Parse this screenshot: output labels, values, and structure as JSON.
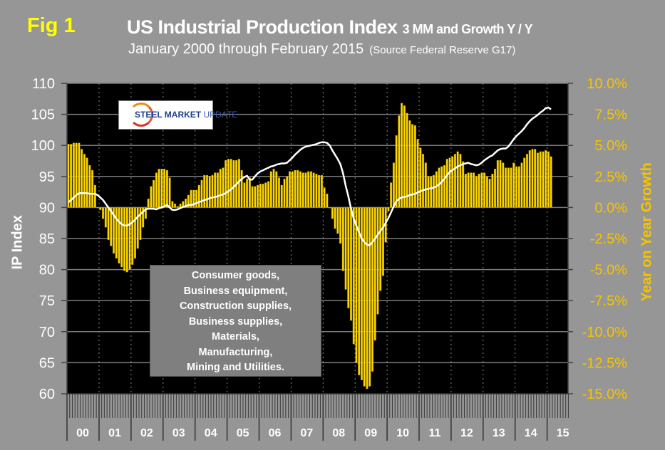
{
  "header": {
    "fig_label": "Fig 1",
    "title_main": "US Industrial Production Index",
    "title_small": "3 MM and Growth Y / Y",
    "subtitle": "January 2000 through February 2015",
    "source": "(Source Federal Reserve G17)"
  },
  "logo": {
    "text_bold": "STEEL MARKET",
    "text_light": "UPDATE"
  },
  "textbox": {
    "lines": [
      "Consumer goods,",
      "Business equipment,",
      "Construction supplies,",
      "Business supplies,",
      "Materials,",
      "Manufacturing,",
      "Mining and Utilities."
    ]
  },
  "colors": {
    "background": "#969696",
    "plot": "#000000",
    "bars": "#FFD700",
    "line": "#FFFFFF",
    "fig_label": "#FFFF00",
    "right_axis": "#F5C400"
  },
  "chart_data": {
    "type": "bar+line",
    "title": "US Industrial Production Index 3 MM and Growth Y / Y",
    "subtitle": "January 2000 through February 2015 (Source Federal Reserve G17)",
    "xlabel": "",
    "ylabel": "IP Index",
    "y2label": "Year on Year Growth",
    "ylim": [
      60,
      110
    ],
    "y2lim": [
      -15,
      10
    ],
    "yticks": [
      "60",
      "65",
      "70",
      "75",
      "80",
      "85",
      "90",
      "95",
      "100",
      "105",
      "110"
    ],
    "y2ticks": [
      "-15.0%",
      "-12.5%",
      "-10.0%",
      "-7.5%",
      "-5.0%",
      "-2.5%",
      "0.0%",
      "2.5%",
      "5.0%",
      "7.5%",
      "10.0%"
    ],
    "xticks": [
      "00",
      "01",
      "02",
      "03",
      "04",
      "05",
      "06",
      "07",
      "08",
      "09",
      "10",
      "11",
      "12",
      "13",
      "14",
      "15"
    ],
    "start": "2000-01",
    "grid": true,
    "series": [
      {
        "name": "Growth Y/Y (%)",
        "type": "bar",
        "axis": "right",
        "values": [
          5.1,
          5.1,
          5.2,
          5.2,
          5.2,
          4.7,
          4.3,
          4.0,
          3.4,
          3.0,
          1.8,
          0.0,
          -0.2,
          -0.9,
          -1.6,
          -2.6,
          -3.1,
          -3.7,
          -4.1,
          -4.5,
          -4.8,
          -5.1,
          -5.2,
          -5.0,
          -4.6,
          -4.1,
          -3.3,
          -2.6,
          -1.6,
          -0.9,
          0.7,
          1.7,
          2.2,
          2.8,
          3.1,
          3.1,
          3.1,
          3.0,
          2.4,
          0.5,
          0.3,
          0.1,
          0.3,
          0.5,
          0.7,
          1.0,
          1.4,
          1.4,
          1.4,
          1.8,
          2.2,
          2.6,
          2.6,
          2.5,
          2.6,
          2.8,
          2.8,
          3.1,
          3.2,
          3.8,
          3.9,
          3.9,
          3.8,
          3.8,
          3.9,
          3.0,
          2.0,
          2.3,
          2.4,
          1.7,
          1.7,
          1.8,
          1.9,
          1.9,
          2.0,
          2.1,
          2.9,
          3.1,
          2.9,
          2.4,
          1.8,
          2.3,
          2.5,
          2.9,
          2.9,
          3.0,
          3.0,
          2.9,
          2.8,
          2.8,
          2.9,
          2.9,
          2.8,
          2.7,
          2.6,
          2.6,
          1.6,
          1.1,
          0.0,
          -0.9,
          -1.7,
          -2.1,
          -2.9,
          -5.1,
          -6.6,
          -8.1,
          -9.1,
          -11.0,
          -12.5,
          -13.5,
          -13.9,
          -14.4,
          -14.6,
          -14.4,
          -13.2,
          -10.7,
          -8.6,
          -6.7,
          -5.5,
          -2.8,
          -0.3,
          2.0,
          3.6,
          5.8,
          7.4,
          8.4,
          8.2,
          7.6,
          7.0,
          6.7,
          6.6,
          5.5,
          4.8,
          4.3,
          3.6,
          2.5,
          2.5,
          2.6,
          2.9,
          3.2,
          3.3,
          3.4,
          3.9,
          4.0,
          4.1,
          4.3,
          4.5,
          4.3,
          3.7,
          2.7,
          2.8,
          2.8,
          2.8,
          2.5,
          2.7,
          2.8,
          2.8,
          2.5,
          2.3,
          2.7,
          3.1,
          3.8,
          3.8,
          3.6,
          3.2,
          3.2,
          3.2,
          3.6,
          3.3,
          3.3,
          3.6,
          4.0,
          4.3,
          4.6,
          4.7,
          4.7,
          4.4,
          4.5,
          4.5,
          4.6,
          4.5,
          4.1
        ]
      },
      {
        "name": "IP Index 3MM",
        "type": "line",
        "axis": "left",
        "values": [
          90.8,
          91.2,
          91.6,
          92.0,
          92.3,
          92.3,
          92.3,
          92.3,
          92.2,
          92.2,
          92.2,
          92.0,
          91.6,
          91.2,
          90.6,
          90.0,
          89.4,
          88.8,
          88.2,
          87.7,
          87.3,
          87.1,
          87.1,
          87.3,
          87.6,
          88.0,
          88.5,
          88.9,
          89.3,
          89.7,
          89.8,
          89.8,
          89.8,
          89.7,
          89.9,
          90.0,
          90.2,
          90.4,
          90.0,
          89.6,
          89.6,
          89.7,
          89.9,
          90.1,
          90.2,
          90.4,
          90.4,
          90.5,
          90.7,
          90.9,
          91.0,
          91.2,
          91.3,
          91.5,
          91.6,
          91.7,
          91.8,
          92.0,
          92.1,
          92.3,
          92.6,
          92.9,
          93.3,
          93.7,
          94.2,
          94.6,
          94.9,
          95.1,
          94.5,
          94.5,
          95.0,
          95.5,
          95.8,
          96.0,
          96.2,
          96.4,
          96.6,
          96.7,
          96.9,
          97.0,
          97.1,
          97.1,
          97.2,
          97.6,
          98.0,
          98.5,
          98.9,
          99.3,
          99.6,
          99.8,
          99.9,
          100.0,
          100.1,
          100.2,
          100.4,
          100.5,
          100.5,
          100.4,
          100.0,
          99.2,
          98.5,
          97.8,
          97.0,
          95.5,
          93.5,
          91.8,
          89.8,
          88.2,
          87.1,
          86.0,
          85.0,
          84.4,
          84.0,
          83.9,
          84.4,
          85.0,
          85.6,
          86.2,
          86.8,
          87.5,
          88.3,
          89.2,
          90.2,
          91.0,
          91.4,
          91.6,
          91.7,
          91.8,
          92.0,
          92.1,
          92.2,
          92.4,
          92.6,
          92.8,
          92.9,
          93.0,
          93.1,
          93.2,
          93.4,
          93.7,
          94.1,
          94.6,
          95.2,
          95.7,
          96.0,
          96.3,
          96.6,
          96.8,
          97.0,
          97.1,
          97.2,
          97.0,
          96.9,
          96.8,
          96.9,
          97.2,
          97.6,
          97.9,
          98.2,
          98.4,
          98.8,
          99.2,
          99.4,
          99.5,
          99.5,
          99.8,
          100.4,
          101.0,
          101.5,
          101.9,
          102.3,
          102.8,
          103.4,
          103.9,
          104.3,
          104.6,
          104.9,
          105.3,
          105.6,
          106.0,
          106.1,
          105.8
        ]
      }
    ]
  }
}
